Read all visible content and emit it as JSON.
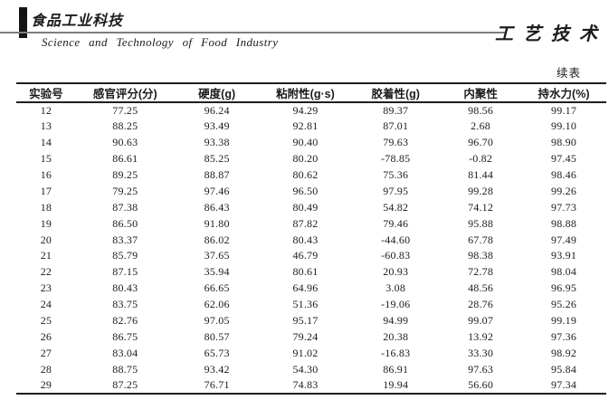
{
  "masthead": {
    "journal_logo_cn": "食品工业科技",
    "journal_name_en": "Science  and  Technology  of  Food  Industry",
    "section_title": "工艺技术"
  },
  "table": {
    "continued_label": "续表",
    "columns": [
      "实验号",
      "感官评分(分)",
      "硬度(g)",
      "粘附性(g·s)",
      "胶着性(g)",
      "内聚性",
      "持水力(%)"
    ],
    "rows": [
      [
        "12",
        "77.25",
        "96.24",
        "94.29",
        "89.37",
        "98.56",
        "99.17"
      ],
      [
        "13",
        "88.25",
        "93.49",
        "92.81",
        "87.01",
        "2.68",
        "99.10"
      ],
      [
        "14",
        "90.63",
        "93.38",
        "90.40",
        "79.63",
        "96.70",
        "98.90"
      ],
      [
        "15",
        "86.61",
        "85.25",
        "80.20",
        "-78.85",
        "-0.82",
        "97.45"
      ],
      [
        "16",
        "89.25",
        "88.87",
        "80.62",
        "75.36",
        "81.44",
        "98.46"
      ],
      [
        "17",
        "79.25",
        "97.46",
        "96.50",
        "97.95",
        "99.28",
        "99.26"
      ],
      [
        "18",
        "87.38",
        "86.43",
        "80.49",
        "54.82",
        "74.12",
        "97.73"
      ],
      [
        "19",
        "86.50",
        "91.80",
        "87.82",
        "79.46",
        "95.88",
        "98.88"
      ],
      [
        "20",
        "83.37",
        "86.02",
        "80.43",
        "-44.60",
        "67.78",
        "97.49"
      ],
      [
        "21",
        "85.79",
        "37.65",
        "46.79",
        "-60.83",
        "98.38",
        "93.91"
      ],
      [
        "22",
        "87.15",
        "35.94",
        "80.61",
        "20.93",
        "72.78",
        "98.04"
      ],
      [
        "23",
        "80.43",
        "66.65",
        "64.96",
        "3.08",
        "48.56",
        "96.95"
      ],
      [
        "24",
        "83.75",
        "62.06",
        "51.36",
        "-19.06",
        "28.76",
        "95.26"
      ],
      [
        "25",
        "82.76",
        "97.05",
        "95.17",
        "94.99",
        "99.07",
        "99.19"
      ],
      [
        "26",
        "86.75",
        "80.57",
        "79.24",
        "20.38",
        "13.92",
        "97.36"
      ],
      [
        "27",
        "83.04",
        "65.73",
        "91.02",
        "-16.83",
        "33.30",
        "98.92"
      ],
      [
        "28",
        "88.75",
        "93.42",
        "54.30",
        "86.91",
        "97.63",
        "95.84"
      ],
      [
        "29",
        "87.25",
        "76.71",
        "74.83",
        "19.94",
        "56.60",
        "97.34"
      ]
    ]
  }
}
